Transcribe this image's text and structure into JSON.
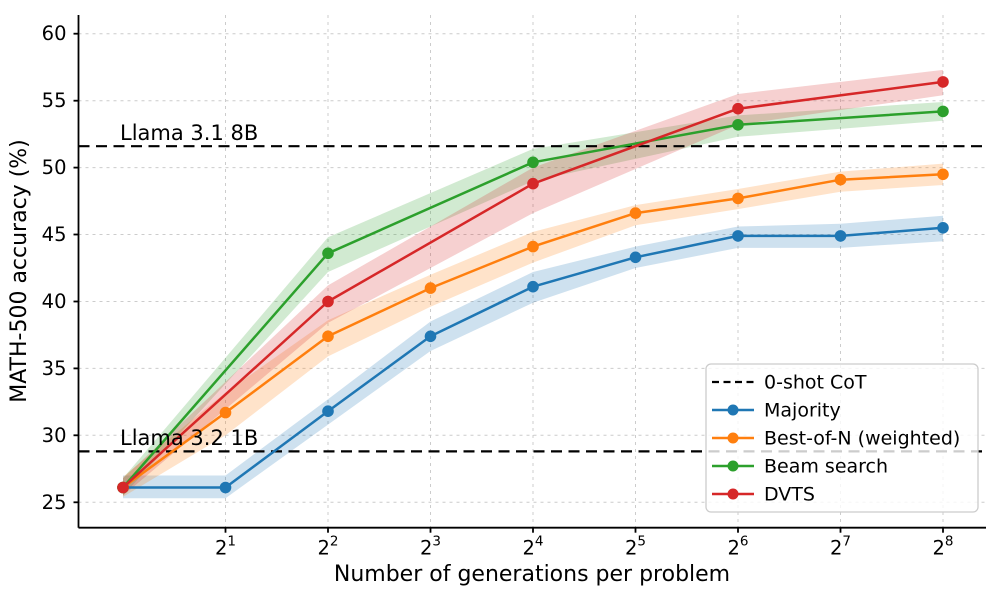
{
  "chart_data": {
    "type": "line",
    "title": "",
    "xlabel": "Number of generations per problem",
    "ylabel": "MATH-500 accuracy (%)",
    "x_scale": "log2",
    "xtick_base": "2",
    "xtick_exponents": [
      1,
      2,
      3,
      4,
      5,
      6,
      7,
      8
    ],
    "yticks": [
      25,
      30,
      35,
      40,
      45,
      50,
      55,
      60
    ],
    "xlim_exponents": [
      -0.434,
      8.42
    ],
    "ylim": [
      23.1,
      61.4
    ],
    "grid": true,
    "background_color": "#ffffff",
    "grid_color": "#cccccc",
    "spine_color": "#000000",
    "baselines": [
      {
        "label": "Llama 3.1 8B",
        "value": 51.6,
        "color": "#000000",
        "style": "dashed"
      },
      {
        "label": "Llama 3.2 1B",
        "value": 28.8,
        "color": "#000000",
        "style": "dashed"
      }
    ],
    "series": [
      {
        "name": "Majority",
        "color": "#1f77b4",
        "x_exponents": [
          0,
          1,
          2,
          3,
          4,
          5,
          6,
          7,
          8
        ],
        "y": [
          26.1,
          26.1,
          31.8,
          37.4,
          41.1,
          43.3,
          44.9,
          44.9,
          45.5
        ],
        "band_lower": [
          25.3,
          25.3,
          30.8,
          36.3,
          39.9,
          42.5,
          44.0,
          44.0,
          44.5
        ],
        "band_upper": [
          27.0,
          27.0,
          32.7,
          38.5,
          42.2,
          44.1,
          45.6,
          45.8,
          46.4
        ]
      },
      {
        "name": "Best-of-N (weighted)",
        "color": "#ff7f0e",
        "x_exponents": [
          0,
          1,
          2,
          3,
          4,
          5,
          6,
          7,
          8
        ],
        "y": [
          26.1,
          31.7,
          37.4,
          41.0,
          44.1,
          46.6,
          47.7,
          49.1,
          49.5
        ],
        "band_lower": [
          25.4,
          30.0,
          35.9,
          39.6,
          42.9,
          45.7,
          46.9,
          48.2,
          48.7
        ],
        "band_upper": [
          26.9,
          33.2,
          38.6,
          42.0,
          45.2,
          47.2,
          48.4,
          49.7,
          50.3
        ]
      },
      {
        "name": "Beam search",
        "color": "#2ca02c",
        "x_exponents": [
          0,
          2,
          4,
          6,
          8
        ],
        "y": [
          26.1,
          43.6,
          50.4,
          53.2,
          54.2
        ],
        "band_lower": [
          25.5,
          42.2,
          49.0,
          52.3,
          53.5
        ],
        "band_upper": [
          26.8,
          44.8,
          51.4,
          53.9,
          54.9
        ]
      },
      {
        "name": "DVTS",
        "color": "#d62728",
        "x_exponents": [
          0,
          2,
          4,
          6,
          8
        ],
        "y": [
          26.1,
          40.0,
          48.8,
          54.4,
          56.4
        ],
        "band_lower": [
          25.5,
          38.4,
          46.6,
          53.2,
          55.4
        ],
        "band_upper": [
          26.8,
          41.2,
          50.0,
          55.5,
          57.3
        ]
      }
    ],
    "legend": {
      "position": "lower right",
      "entries": [
        {
          "label": "0-shot CoT",
          "color": "#000000",
          "style": "dashed"
        },
        {
          "label": "Majority",
          "color": "#1f77b4",
          "style": "line-marker"
        },
        {
          "label": "Best-of-N (weighted)",
          "color": "#ff7f0e",
          "style": "line-marker"
        },
        {
          "label": "Beam search",
          "color": "#2ca02c",
          "style": "line-marker"
        },
        {
          "label": "DVTS",
          "color": "#d62728",
          "style": "line-marker"
        }
      ]
    }
  }
}
